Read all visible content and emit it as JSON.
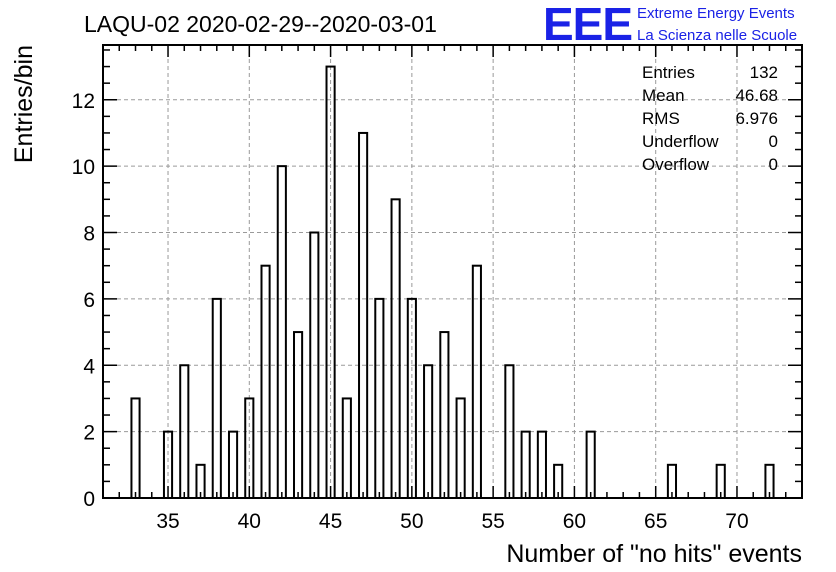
{
  "chart_data": {
    "type": "bar",
    "title": "LAQU-02 2020-02-29--2020-03-01",
    "xlabel": "Number of \"no hits\" events",
    "ylabel": "Entries/bin",
    "xlim": [
      31,
      74
    ],
    "ylim": [
      0,
      13.65
    ],
    "xticks": [
      35,
      40,
      45,
      50,
      55,
      60,
      65,
      70
    ],
    "yticks": [
      0,
      2,
      4,
      6,
      8,
      10,
      12
    ],
    "grid": true,
    "bin_width": 0.5,
    "x": [
      33,
      35,
      36,
      37,
      38,
      39,
      40,
      41,
      42,
      43,
      44,
      45,
      46,
      47,
      48,
      49,
      50,
      51,
      52,
      53,
      54,
      56,
      57,
      58,
      59,
      61,
      66,
      69,
      72
    ],
    "values": [
      3,
      2,
      4,
      1,
      6,
      2,
      3,
      7,
      10,
      5,
      8,
      13,
      3,
      11,
      6,
      9,
      6,
      4,
      5,
      3,
      7,
      4,
      2,
      2,
      1,
      2,
      1,
      1,
      1
    ],
    "stats": [
      {
        "label": "Entries",
        "value": "132"
      },
      {
        "label": "Mean",
        "value": "46.68"
      },
      {
        "label": "RMS",
        "value": "6.976"
      },
      {
        "label": "Underflow",
        "value": "0"
      },
      {
        "label": "Overflow",
        "value": "0"
      }
    ]
  },
  "logo": {
    "mark": "EEE",
    "line1": "Extreme Energy Events",
    "line2": "La Scienza nelle Scuole"
  },
  "colors": {
    "bars": "#000000",
    "grid": "#9a9a9a",
    "logo": "#1a22e6"
  }
}
